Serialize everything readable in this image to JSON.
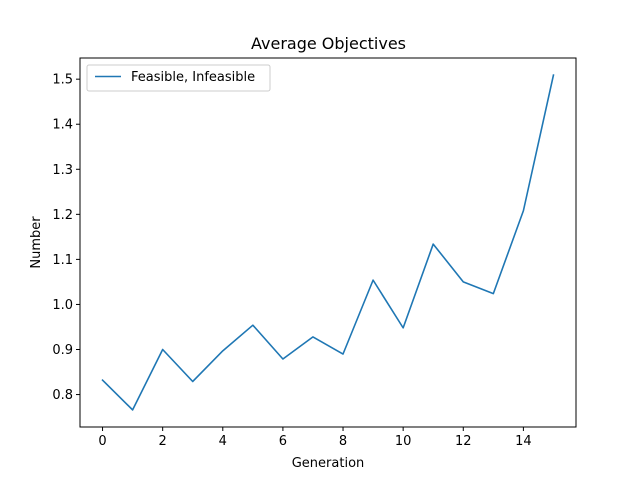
{
  "chart_data": {
    "type": "line",
    "title": "Average Objectives",
    "xlabel": "Generation",
    "ylabel": "Number",
    "xlim": [
      -0.75,
      15.75
    ],
    "ylim": [
      0.728,
      1.547
    ],
    "xticks": [
      0,
      2,
      4,
      6,
      8,
      10,
      12,
      14
    ],
    "yticks": [
      0.8,
      0.9,
      1.0,
      1.1,
      1.2,
      1.3,
      1.4,
      1.5
    ],
    "xtick_labels": [
      "0",
      "2",
      "4",
      "6",
      "8",
      "10",
      "12",
      "14"
    ],
    "ytick_labels": [
      "0.8",
      "0.9",
      "1.0",
      "1.1",
      "1.2",
      "1.3",
      "1.4",
      "1.5"
    ],
    "grid": false,
    "legend_position": "top-left",
    "series": [
      {
        "name": "Feasible, Infeasible",
        "color": "#1f77b4",
        "x": [
          0,
          1,
          2,
          3,
          4,
          5,
          6,
          7,
          8,
          9,
          10,
          11,
          12,
          13,
          14,
          15
        ],
        "values": [
          0.832,
          0.766,
          0.9,
          0.829,
          0.897,
          0.954,
          0.879,
          0.928,
          0.89,
          1.054,
          0.948,
          1.134,
          1.05,
          1.024,
          1.208,
          1.509
        ]
      }
    ]
  }
}
